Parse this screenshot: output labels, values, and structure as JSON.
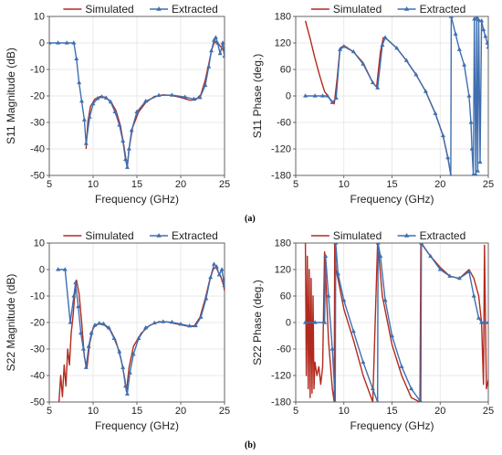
{
  "colors": {
    "simulated": "#b22a1e",
    "extracted": "#3f6fb0"
  },
  "subfigure_labels": [
    "(a)",
    "(b)"
  ],
  "chart_data": [
    {
      "type": "line",
      "xlabel": "Frequency (GHz)",
      "ylabel": "S11 Magnitude (dB)",
      "xlim": [
        5,
        25
      ],
      "ylim": [
        -50,
        10
      ],
      "xticks": [
        "5",
        "10",
        "15",
        "20",
        "25"
      ],
      "yticks": [
        "-50",
        "-40",
        "-30",
        "-20",
        "-10",
        "0",
        "10"
      ],
      "grid": true,
      "legend": "top",
      "series": [
        {
          "name": "Simulated",
          "color": "#b22a1e",
          "markers": false,
          "x": [
            9.2,
            9.4,
            9.7,
            10.2,
            10.8,
            11.4,
            12.0,
            12.6,
            13.1,
            13.5,
            13.8,
            13.9,
            14.1,
            14.5,
            15.2,
            16.0,
            17.0,
            18.0,
            19.0,
            20.0,
            21.0,
            21.7,
            22.3,
            22.8,
            23.2,
            23.5,
            23.8,
            24.1,
            24.3,
            24.6,
            24.9,
            25.1
          ],
          "y": [
            -40,
            -30,
            -24,
            -21.2,
            -20.2,
            -20.5,
            -22,
            -25.5,
            -31,
            -38.5,
            -45,
            -47,
            -40,
            -32,
            -26,
            -22.5,
            -20.2,
            -19.6,
            -19.8,
            -20.6,
            -21.6,
            -21.5,
            -19.5,
            -14,
            -8,
            -3,
            0,
            0.5,
            -0.5,
            -1.5,
            -3,
            -7
          ]
        },
        {
          "name": "Extracted",
          "color": "#3f6fb0",
          "markers": true,
          "x": [
            5,
            6,
            7,
            7.8,
            8.1,
            8.4,
            8.7,
            9.0,
            9.2,
            9.6,
            10.0,
            10.5,
            11.0,
            11.5,
            12.0,
            12.5,
            13.0,
            13.4,
            13.7,
            13.9,
            14.1,
            14.4,
            15.0,
            16.0,
            17.5,
            19.0,
            20.5,
            21.5,
            22.2,
            22.8,
            23.2,
            23.5,
            23.8,
            24.0,
            24.2,
            24.5,
            24.8,
            25.0
          ],
          "y": [
            0,
            0,
            0,
            0,
            -6,
            -15,
            -22,
            -29,
            -38,
            -28,
            -23,
            -21,
            -20.3,
            -20.8,
            -22.3,
            -26,
            -31,
            -37,
            -44,
            -47,
            -40,
            -33,
            -26,
            -22,
            -19.8,
            -19.7,
            -20.4,
            -21.2,
            -20.6,
            -16,
            -9,
            -3,
            1,
            2,
            0,
            -4,
            0,
            -5
          ]
        }
      ]
    },
    {
      "type": "line",
      "xlabel": "Frequency (GHz)",
      "ylabel": "S11 Phase (deg.)",
      "xlim": [
        5,
        25
      ],
      "ylim": [
        -180,
        180
      ],
      "xticks": [
        "5",
        "10",
        "15",
        "20",
        "25"
      ],
      "yticks": [
        "-180",
        "-120",
        "-60",
        "0",
        "60",
        "120",
        "180"
      ],
      "grid": true,
      "legend": "top",
      "series": [
        {
          "name": "Simulated",
          "color": "#b22a1e",
          "markers": false,
          "x": [
            6.0,
            6.5,
            7.0,
            7.5,
            8.0,
            8.5,
            9.0,
            9.3,
            9.6,
            10.0,
            11.0,
            12.0,
            13.0,
            13.4,
            13.8,
            14.1,
            14.5,
            15.5,
            16.5,
            17.5,
            18.5,
            19.5,
            20.3,
            20.8,
            21.1
          ],
          "y": [
            170,
            130,
            85,
            45,
            10,
            -5,
            -18,
            40,
            108,
            114,
            100,
            75,
            30,
            20,
            100,
            132,
            128,
            108,
            80,
            48,
            10,
            -40,
            -90,
            -140,
            -176
          ]
        },
        {
          "name": "Extracted",
          "color": "#3f6fb0",
          "markers": true,
          "x": [
            6,
            7,
            7.8,
            8.3,
            8.8,
            9.2,
            9.6,
            10.0,
            11.0,
            12.0,
            13.0,
            13.5,
            14.0,
            14.3,
            15.5,
            16.5,
            17.5,
            18.5,
            19.5,
            20.3,
            20.8,
            21.1,
            21.15,
            21.6,
            22.0,
            22.5,
            23.0,
            23.2,
            23.3,
            23.45,
            23.55,
            23.7,
            23.8,
            23.9,
            24.0,
            24.15,
            24.3,
            24.5,
            24.7,
            24.9,
            25.0
          ],
          "y": [
            0,
            0,
            0,
            0,
            -15,
            -5,
            105,
            112,
            100,
            72,
            30,
            18,
            115,
            132,
            108,
            80,
            48,
            10,
            -40,
            -90,
            -140,
            -180,
            180,
            140,
            105,
            70,
            0,
            -60,
            -120,
            -178,
            174,
            -178,
            178,
            -170,
            172,
            -150,
            170,
            150,
            135,
            120,
            110
          ]
        }
      ]
    },
    {
      "type": "line",
      "xlabel": "Frequency (GHz)",
      "ylabel": "S22 Magnitude (dB)",
      "xlim": [
        5,
        25
      ],
      "ylim": [
        -50,
        10
      ],
      "xticks": [
        "5",
        "10",
        "15",
        "20",
        "25"
      ],
      "yticks": [
        "-50",
        "-40",
        "-30",
        "-20",
        "-10",
        "0",
        "10"
      ],
      "grid": true,
      "legend": "top",
      "series": [
        {
          "name": "Simulated",
          "color": "#b22a1e",
          "markers": false,
          "x": [
            6.1,
            6.3,
            6.5,
            6.7,
            6.9,
            7.1,
            7.3,
            7.5,
            7.7,
            7.9,
            8.1,
            8.4,
            8.7,
            9.0,
            9.3,
            9.6,
            10.0,
            10.6,
            11.3,
            12.0,
            12.6,
            13.2,
            13.6,
            13.8,
            14.1,
            14.6,
            15.5,
            16.5,
            17.5,
            18.5,
            19.5,
            20.5,
            21.5,
            22.2,
            22.8,
            23.3,
            23.7,
            24.0,
            24.3,
            24.6,
            24.9,
            25.0
          ],
          "y": [
            -50,
            -40,
            -48,
            -36,
            -44,
            -30,
            -36,
            -24,
            -18,
            -10,
            -4,
            -9,
            -20,
            -33,
            -37,
            -28,
            -22,
            -20.5,
            -21,
            -23,
            -27,
            -34,
            -41,
            -46,
            -37,
            -29,
            -24,
            -21,
            -19.7,
            -19.8,
            -20.5,
            -21.2,
            -21.5,
            -18,
            -11,
            -4,
            0,
            1,
            -1,
            -3,
            -6,
            -8
          ]
        },
        {
          "name": "Extracted",
          "color": "#3f6fb0",
          "markers": true,
          "x": [
            6,
            6.8,
            7.4,
            7.8,
            8.0,
            8.3,
            8.6,
            8.9,
            9.2,
            9.5,
            9.8,
            10.2,
            10.7,
            11.2,
            11.8,
            12.4,
            13.0,
            13.4,
            13.7,
            13.9,
            14.2,
            14.6,
            15.2,
            16.0,
            17.0,
            18.0,
            19.0,
            20.0,
            21.0,
            21.7,
            22.3,
            22.9,
            23.4,
            23.8,
            24.1,
            24.4,
            24.7,
            24.9,
            25.0
          ],
          "y": [
            0,
            0,
            -20,
            -10,
            -5,
            -14,
            -24,
            -30,
            -37,
            -29,
            -24,
            -21,
            -20.3,
            -20.5,
            -22,
            -26,
            -31,
            -37,
            -44,
            -47,
            -39,
            -32,
            -26,
            -22,
            -20.2,
            -19.7,
            -19.9,
            -20.6,
            -21.3,
            -21.2,
            -18,
            -11,
            -3,
            2,
            1,
            -2,
            0,
            -4,
            -6
          ]
        }
      ]
    },
    {
      "type": "line",
      "xlabel": "Frequency (GHz)",
      "ylabel": "S22 Phase (deg.)",
      "xlim": [
        5,
        25
      ],
      "ylim": [
        -180,
        180
      ],
      "xticks": [
        "5",
        "10",
        "15",
        "20",
        "25"
      ],
      "yticks": [
        "-180",
        "-120",
        "-60",
        "0",
        "60",
        "120",
        "180"
      ],
      "grid": true,
      "legend": "top",
      "series": [
        {
          "name": "Simulated",
          "color": "#b22a1e",
          "markers": false,
          "x": [
            6.0,
            6.1,
            6.2,
            6.3,
            6.4,
            6.5,
            6.6,
            6.7,
            6.8,
            6.9,
            7.0,
            7.2,
            7.4,
            7.6,
            7.8,
            8.0,
            8.2,
            8.4,
            8.8,
            9.0,
            9.05,
            9.2,
            10.0,
            11.0,
            12.0,
            13.0,
            13.5,
            13.6,
            14.0,
            15.0,
            16.0,
            17.0,
            17.9,
            18.0,
            19.0,
            20.0,
            21.0,
            22.0,
            23.0,
            23.5,
            24.0,
            24.3,
            24.5,
            24.6,
            24.8,
            25.0
          ],
          "y": [
            180,
            -120,
            150,
            -150,
            120,
            -170,
            100,
            -160,
            60,
            -150,
            -90,
            -120,
            -100,
            -140,
            -100,
            160,
            60,
            -40,
            -150,
            -180,
            180,
            120,
            30,
            -40,
            -120,
            -180,
            180,
            160,
            60,
            -50,
            -120,
            -170,
            -180,
            180,
            150,
            125,
            105,
            100,
            120,
            100,
            60,
            0,
            -140,
            175,
            -150,
            -130
          ]
        },
        {
          "name": "Extracted",
          "color": "#3f6fb0",
          "markers": true,
          "x": [
            6.0,
            7.0,
            8.0,
            8.1,
            8.4,
            8.8,
            9.1,
            9.15,
            9.4,
            10.0,
            11.0,
            12.0,
            13.0,
            13.5,
            13.55,
            13.8,
            14.3,
            15.0,
            16.0,
            17.0,
            18.0,
            18.05,
            19.0,
            20.0,
            21.0,
            22.0,
            23.0,
            23.5,
            24.0,
            24.3,
            24.6,
            25.0
          ],
          "y": [
            0,
            0,
            0,
            150,
            60,
            -60,
            -180,
            180,
            110,
            50,
            -20,
            -90,
            -150,
            -180,
            180,
            150,
            50,
            -30,
            -100,
            -150,
            -180,
            180,
            150,
            120,
            105,
            100,
            115,
            60,
            10,
            0,
            0,
            0
          ]
        }
      ]
    }
  ]
}
